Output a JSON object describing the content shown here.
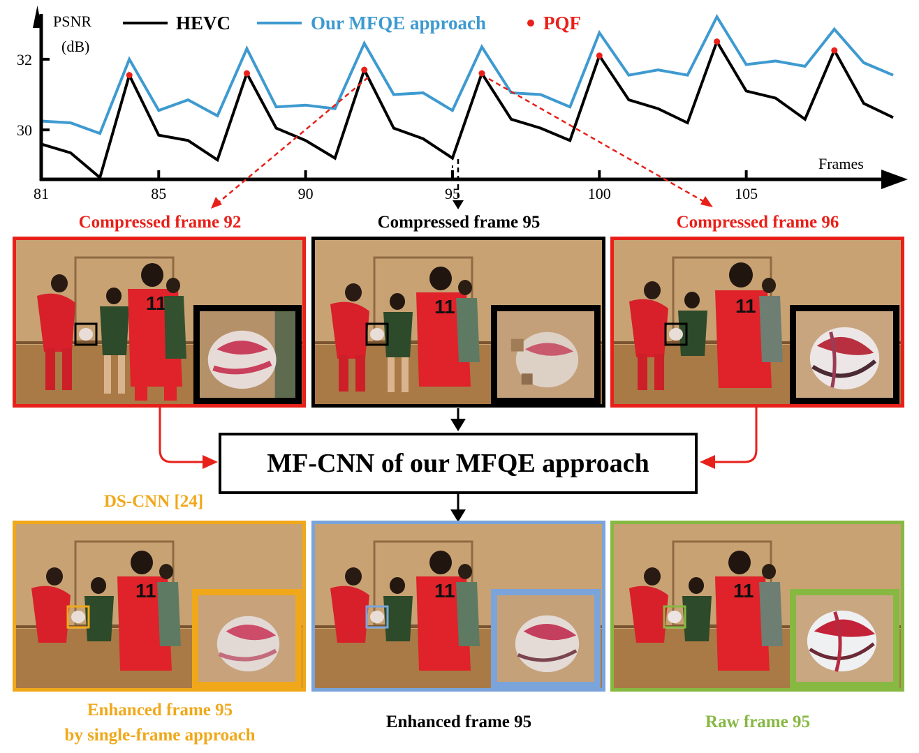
{
  "chart_data": {
    "type": "line",
    "ylabel": "PSNR\n(dB)",
    "ylabel_lines": [
      "PSNR",
      "(dB)"
    ],
    "xlabel": "Frames",
    "x": [
      81,
      82,
      83,
      84,
      85,
      86,
      87,
      88,
      89,
      90,
      91,
      92,
      93,
      94,
      95,
      96,
      97,
      98,
      99,
      100,
      101,
      102,
      103,
      104,
      105,
      106,
      107,
      108,
      109,
      110
    ],
    "xticks": [
      "81",
      "85",
      "90",
      "95",
      "100",
      "105"
    ],
    "xtick_values": [
      81,
      85,
      90,
      95,
      100,
      105
    ],
    "yticks": [
      "30",
      "32"
    ],
    "ytick_values": [
      30,
      32
    ],
    "xlim": [
      81,
      110.5
    ],
    "ylim": [
      28.6,
      33.4
    ],
    "series": [
      {
        "name": "HEVC",
        "color": "#000000",
        "values": [
          29.6,
          29.35,
          28.65,
          31.55,
          29.85,
          29.7,
          29.15,
          31.6,
          30.05,
          29.7,
          29.2,
          31.7,
          30.05,
          29.75,
          29.2,
          31.6,
          30.3,
          30.05,
          29.7,
          32.1,
          30.85,
          30.6,
          30.2,
          32.5,
          31.1,
          30.9,
          30.3,
          32.25,
          30.75,
          30.35
        ]
      },
      {
        "name": "Our MFQE approach",
        "color": "#3e9ad0",
        "values": [
          30.25,
          30.2,
          29.9,
          32.0,
          30.55,
          30.85,
          30.4,
          32.3,
          30.65,
          30.7,
          30.6,
          32.45,
          31.0,
          31.05,
          30.55,
          32.35,
          31.05,
          31.0,
          30.65,
          32.75,
          31.55,
          31.7,
          31.55,
          33.2,
          31.85,
          31.95,
          31.8,
          32.85,
          31.9,
          31.55
        ]
      }
    ],
    "pqf": {
      "name": "PQF",
      "color": "#e8201a",
      "x": [
        84,
        88,
        92,
        96,
        100,
        104,
        108
      ],
      "y": [
        31.55,
        31.6,
        31.7,
        31.6,
        32.1,
        32.5,
        32.25
      ]
    }
  },
  "colors": {
    "red": "#e8201a",
    "black": "#000000",
    "orange": "#f0a81a",
    "blue": "#7aa4da",
    "green": "#86b842"
  },
  "frames": {
    "compressed_92": {
      "label": "Compressed frame 92",
      "label_color": "#e8201a"
    },
    "compressed_95": {
      "label": "Compressed frame 95",
      "label_color": "#000000"
    },
    "compressed_96": {
      "label": "Compressed frame 96",
      "label_color": "#e8201a"
    },
    "ds_cnn": {
      "method": "DS-CNN [24]",
      "label_line1": "Enhanced frame 95",
      "label_line2": "by single-frame approach",
      "label_color": "#f0a81a"
    },
    "enhanced_95": {
      "label": "Enhanced frame 95",
      "label_color": "#000000"
    },
    "raw_95": {
      "label": "Raw frame 95",
      "label_color": "#86b842"
    }
  },
  "mfcnn": {
    "label": "MF-CNN of our MFQE approach"
  }
}
